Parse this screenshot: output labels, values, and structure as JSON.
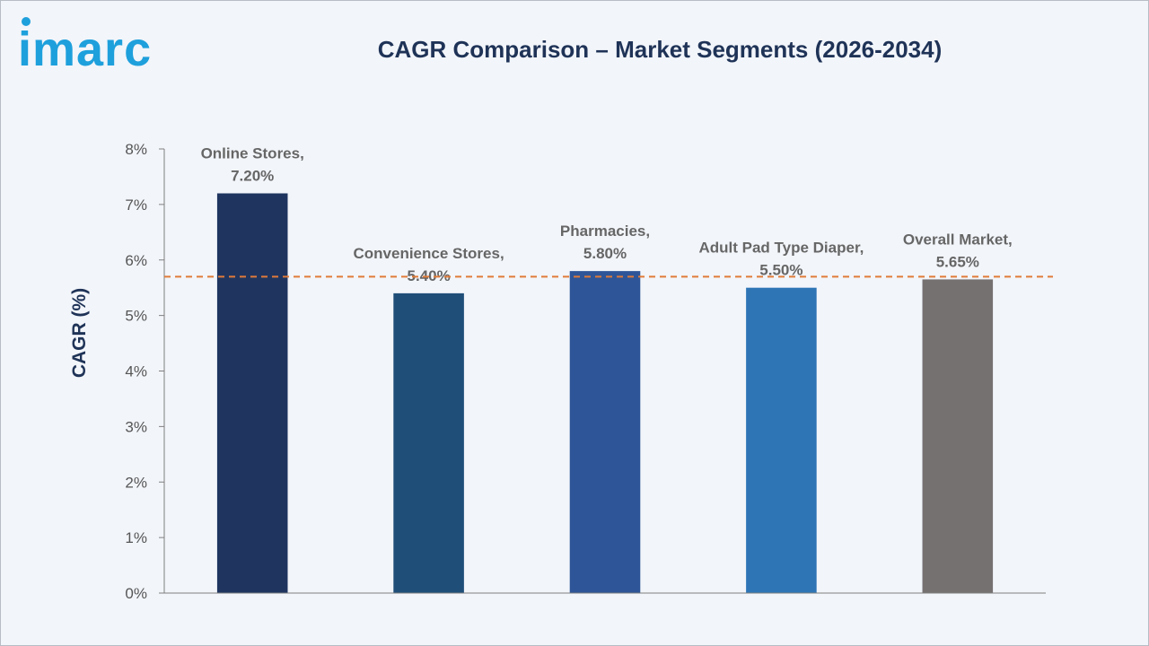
{
  "brand": {
    "logo_text": "imarc",
    "logo_color": "#1ea0dc"
  },
  "chart_data": {
    "type": "bar",
    "title": "CAGR Comparison – Market Segments (2026-2034)",
    "ylabel": "CAGR (%)",
    "xlabel": "",
    "ylim": [
      0,
      8
    ],
    "yticks": [
      0,
      1,
      2,
      3,
      4,
      5,
      6,
      7,
      8
    ],
    "ytick_labels": [
      "0%",
      "1%",
      "2%",
      "3%",
      "4%",
      "5%",
      "6%",
      "7%",
      "8%"
    ],
    "categories": [
      "Online Stores",
      "Convenience Stores",
      "Pharmacies",
      "Adult Pad Type Diaper",
      "Overall Market"
    ],
    "values": [
      7.2,
      5.4,
      5.8,
      5.5,
      5.65
    ],
    "data_labels": [
      [
        "Online Stores,",
        "7.20%"
      ],
      [
        "Convenience Stores,",
        "5.40%"
      ],
      [
        "Pharmacies,",
        "5.80%"
      ],
      [
        "Adult Pad Type Diaper,",
        "5.50%"
      ],
      [
        "Overall Market,",
        "5.65%"
      ]
    ],
    "colors": [
      "#1f3560",
      "#1f4e79",
      "#2e5597",
      "#2e75b6",
      "#767171"
    ],
    "reference_line": {
      "value": 5.7,
      "style": "dashed",
      "color": "#e07b39"
    },
    "grid": false,
    "legend": "none"
  }
}
